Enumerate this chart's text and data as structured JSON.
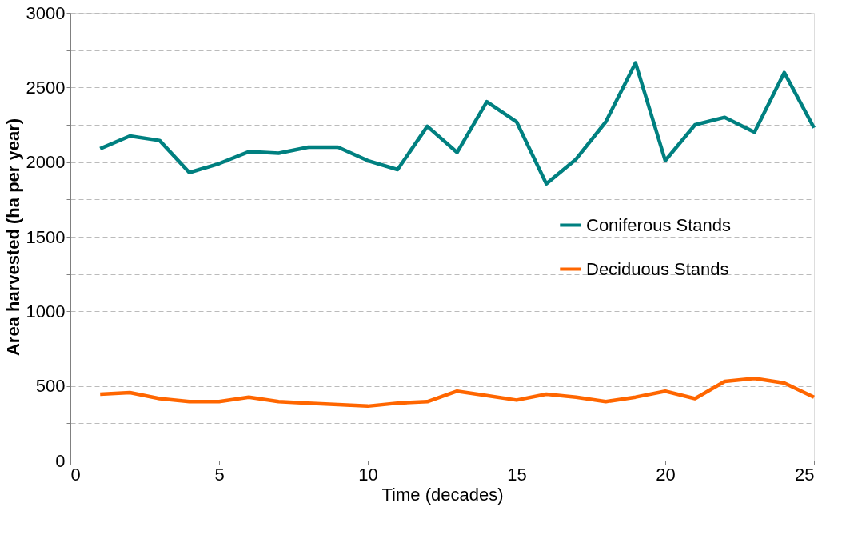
{
  "chart_data": {
    "type": "line",
    "xlabel": "Time (decades)",
    "ylabel": "Area harvested (ha per year)",
    "x": [
      1,
      2,
      3,
      4,
      5,
      6,
      7,
      8,
      9,
      10,
      11,
      12,
      13,
      14,
      15,
      16,
      17,
      18,
      19,
      20,
      21,
      22,
      23,
      24,
      25
    ],
    "series": [
      {
        "name": "Coniferous Stands",
        "color": "#008080",
        "values": [
          2090,
          2175,
          2145,
          1930,
          1990,
          2070,
          2060,
          2100,
          2100,
          2010,
          1950,
          2240,
          2065,
          2405,
          2270,
          1855,
          2020,
          2270,
          2665,
          2010,
          2250,
          2300,
          2200,
          2600,
          2230
        ]
      },
      {
        "name": "Deciduous Stands",
        "color": "#ff6600",
        "values": [
          445,
          455,
          415,
          395,
          395,
          425,
          395,
          385,
          375,
          365,
          385,
          395,
          465,
          435,
          405,
          445,
          425,
          395,
          425,
          465,
          415,
          530,
          550,
          520,
          425
        ]
      }
    ],
    "xlim": [
      0,
      25
    ],
    "xticks": [
      0,
      5,
      10,
      15,
      20,
      25
    ],
    "ylim": [
      0,
      3000
    ],
    "yticks": [
      0,
      {
        "value": 250,
        "label": null
      },
      500,
      {
        "value": 750,
        "label": null
      },
      1000,
      {
        "value": 1250,
        "label": null
      },
      1500,
      {
        "value": 1750,
        "label": null
      },
      2000,
      {
        "value": 2250,
        "label": null
      },
      2500,
      {
        "value": 2750,
        "label": null
      },
      3000
    ],
    "grid": "y",
    "legend": "right",
    "marker": "none",
    "line_style": "solid"
  }
}
